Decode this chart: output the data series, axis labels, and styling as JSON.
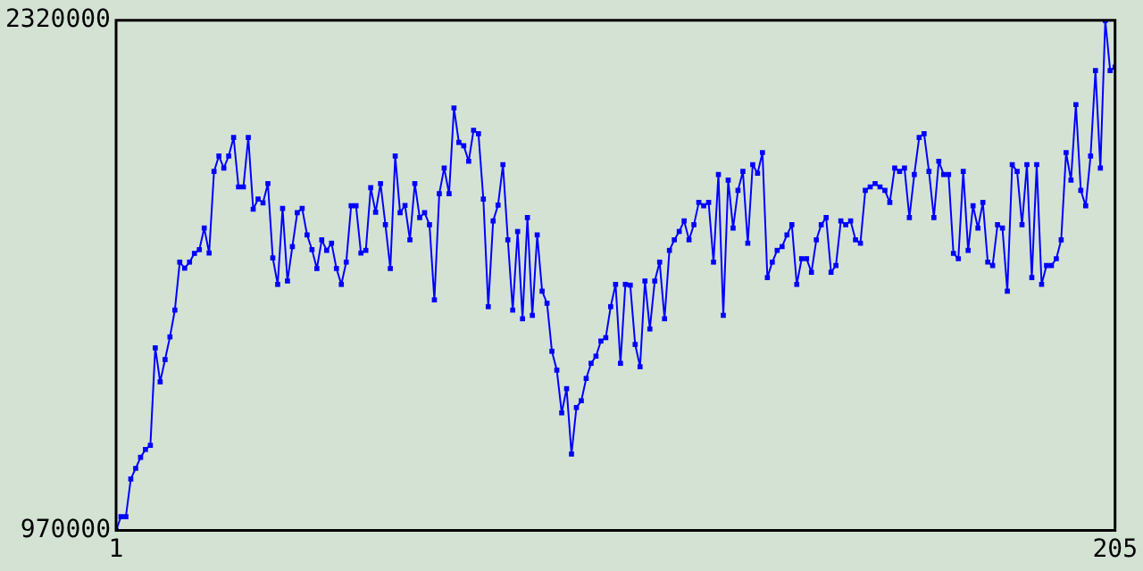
{
  "chart_data": {
    "type": "line",
    "marker": "square",
    "xlim": [
      1,
      205
    ],
    "xticks": [
      1,
      205
    ],
    "ylim": [
      970000,
      2320000
    ],
    "yticks": [
      970000,
      2320000
    ],
    "x": [
      1,
      2,
      3,
      4,
      5,
      6,
      7,
      8,
      9,
      10,
      11,
      12,
      13,
      14,
      15,
      16,
      17,
      18,
      19,
      20,
      21,
      22,
      23,
      24,
      25,
      26,
      27,
      28,
      29,
      30,
      31,
      32,
      33,
      34,
      35,
      36,
      37,
      38,
      39,
      40,
      41,
      42,
      43,
      44,
      45,
      46,
      47,
      48,
      49,
      50,
      51,
      52,
      53,
      54,
      55,
      56,
      57,
      58,
      59,
      60,
      61,
      62,
      63,
      64,
      65,
      66,
      67,
      68,
      69,
      70,
      71,
      72,
      73,
      74,
      75,
      76,
      77,
      78,
      79,
      80,
      81,
      82,
      83,
      84,
      85,
      86,
      87,
      88,
      89,
      90,
      91,
      92,
      93,
      94,
      95,
      96,
      97,
      98,
      99,
      100,
      101,
      102,
      103,
      104,
      105,
      106,
      107,
      108,
      109,
      110,
      111,
      112,
      113,
      114,
      115,
      116,
      117,
      118,
      119,
      120,
      121,
      122,
      123,
      124,
      125,
      126,
      127,
      128,
      129,
      130,
      131,
      132,
      133,
      134,
      135,
      136,
      137,
      138,
      139,
      140,
      141,
      142,
      143,
      144,
      145,
      146,
      147,
      148,
      149,
      150,
      151,
      152,
      153,
      154,
      155,
      156,
      157,
      158,
      159,
      160,
      161,
      162,
      163,
      164,
      165,
      166,
      167,
      168,
      169,
      170,
      171,
      172,
      173,
      174,
      175,
      176,
      177,
      178,
      179,
      180,
      181,
      182,
      183,
      184,
      185,
      186,
      187,
      188,
      189,
      190,
      191,
      192,
      193,
      194,
      195,
      196,
      197,
      198,
      199,
      200,
      201,
      202,
      203,
      204,
      205
    ],
    "series": [
      {
        "color": "#0000ff",
        "values": [
          970000,
          1006000,
          1006000,
          1106000,
          1134000,
          1163000,
          1184000,
          1195000,
          1453000,
          1363000,
          1422000,
          1482000,
          1553000,
          1680000,
          1664000,
          1680000,
          1703000,
          1713000,
          1770000,
          1704000,
          1920000,
          1961000,
          1929000,
          1961000,
          2010000,
          1879000,
          1879000,
          2010000,
          1820000,
          1847000,
          1837000,
          1888000,
          1691000,
          1621000,
          1822000,
          1630000,
          1721000,
          1811000,
          1822000,
          1752000,
          1713000,
          1663000,
          1739000,
          1711000,
          1730000,
          1663000,
          1621000,
          1680000,
          1829000,
          1829000,
          1704000,
          1711000,
          1877000,
          1812000,
          1888000,
          1779000,
          1663000,
          1961000,
          1811000,
          1830000,
          1739000,
          1888000,
          1798000,
          1811000,
          1779000,
          1580000,
          1861000,
          1929000,
          1861000,
          2088000,
          1997000,
          1988000,
          1947000,
          2029000,
          2020000,
          1847000,
          1562000,
          1789000,
          1831000,
          1938000,
          1739000,
          1553000,
          1761000,
          1530000,
          1798000,
          1539000,
          1752000,
          1603000,
          1571000,
          1444000,
          1394000,
          1281000,
          1345000,
          1172000,
          1295000,
          1313000,
          1372000,
          1412000,
          1431000,
          1471000,
          1480000,
          1562000,
          1621000,
          1412000,
          1621000,
          1619000,
          1462000,
          1403000,
          1630000,
          1503000,
          1630000,
          1680000,
          1530000,
          1711000,
          1739000,
          1761000,
          1789000,
          1739000,
          1779000,
          1838000,
          1829000,
          1838000,
          1680000,
          1912000,
          1539000,
          1897000,
          1770000,
          1870000,
          1920000,
          1730000,
          1938000,
          1915000,
          1970000,
          1639000,
          1680000,
          1711000,
          1721000,
          1752000,
          1779000,
          1621000,
          1689000,
          1689000,
          1653000,
          1739000,
          1779000,
          1798000,
          1653000,
          1671000,
          1789000,
          1779000,
          1789000,
          1739000,
          1730000,
          1870000,
          1879000,
          1888000,
          1879000,
          1870000,
          1838000,
          1929000,
          1920000,
          1929000,
          1798000,
          1912000,
          2010000,
          2020000,
          1920000,
          1798000,
          1947000,
          1912000,
          1912000,
          1703000,
          1689000,
          1920000,
          1711000,
          1829000,
          1770000,
          1838000,
          1680000,
          1671000,
          1779000,
          1770000,
          1603000,
          1938000,
          1920000,
          1779000,
          1938000,
          1639000,
          1938000,
          1621000,
          1671000,
          1671000,
          1689000,
          1739000,
          1970000,
          1897000,
          2097000,
          1870000,
          1829000,
          1961000,
          2187000,
          1929000,
          2320000,
          2187000,
          2196000
        ]
      }
    ]
  }
}
